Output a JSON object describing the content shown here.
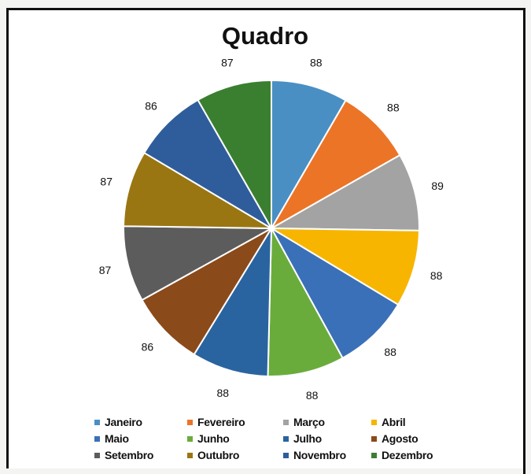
{
  "chart_data": {
    "type": "pie",
    "title": "Quadro",
    "categories": [
      "Janeiro",
      "Fevereiro",
      "Março",
      "Abril",
      "Maio",
      "Junho",
      "Julho",
      "Agosto",
      "Setembro",
      "Outubro",
      "Novembro",
      "Dezembro"
    ],
    "values": [
      88,
      88,
      89,
      88,
      88,
      88,
      88,
      86,
      87,
      87,
      86,
      87
    ],
    "colors": [
      "#4a8fc4",
      "#ec7427",
      "#a3a3a3",
      "#f7b500",
      "#3a70b8",
      "#6aac3c",
      "#2a64a0",
      "#8b4a1a",
      "#5c5c5c",
      "#9a7612",
      "#2f5d9c",
      "#3a7f30"
    ],
    "legend_position": "bottom",
    "start_angle_deg": 0,
    "direction": "clockwise"
  }
}
